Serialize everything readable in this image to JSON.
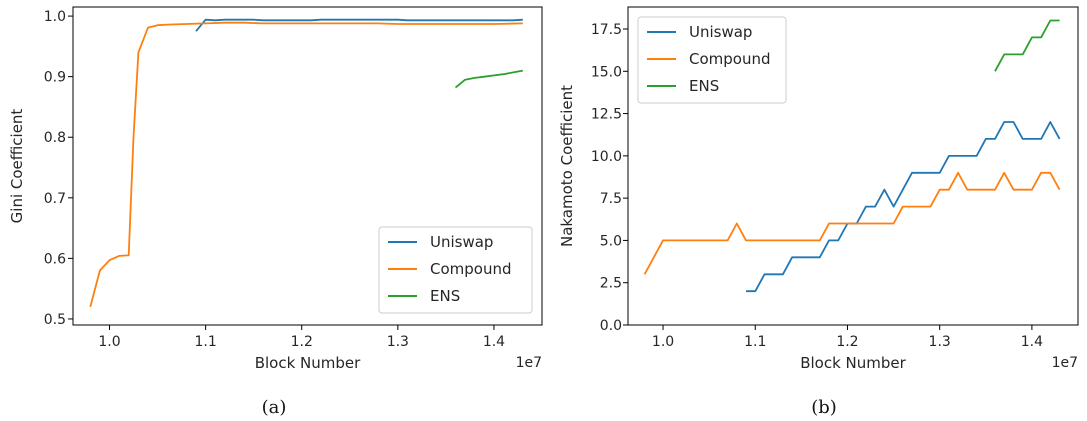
{
  "colors": {
    "Uniswap": "#1f77b4",
    "Compound": "#ff7f0e",
    "ENS": "#2ca02c"
  },
  "chart_data": [
    {
      "type": "line",
      "caption": "(a)",
      "xlabel": "Block Number",
      "ylabel": "Gini Coefficient",
      "x_offset_label": "1e7",
      "xlim": [
        0.962,
        1.45
      ],
      "ylim": [
        0.49,
        1.015
      ],
      "xticks": [
        1.0,
        1.1,
        1.2,
        1.3,
        1.4
      ],
      "xtick_labels": [
        "1.0",
        "1.1",
        "1.2",
        "1.3",
        "1.4"
      ],
      "yticks": [
        0.5,
        0.6,
        0.7,
        0.8,
        0.9,
        1.0
      ],
      "ytick_labels": [
        "0.5",
        "0.6",
        "0.7",
        "0.8",
        "0.9",
        "1.0"
      ],
      "legend": "lower-right",
      "series": [
        {
          "name": "Uniswap",
          "x": [
            1.09,
            1.1,
            1.11,
            1.12,
            1.13,
            1.14,
            1.15,
            1.16,
            1.17,
            1.18,
            1.19,
            1.2,
            1.21,
            1.22,
            1.23,
            1.24,
            1.25,
            1.26,
            1.27,
            1.28,
            1.29,
            1.3,
            1.31,
            1.32,
            1.33,
            1.34,
            1.35,
            1.36,
            1.37,
            1.38,
            1.39,
            1.4,
            1.41,
            1.42,
            1.43
          ],
          "y": [
            0.975,
            0.994,
            0.993,
            0.994,
            0.994,
            0.994,
            0.994,
            0.993,
            0.993,
            0.993,
            0.993,
            0.993,
            0.993,
            0.994,
            0.994,
            0.994,
            0.994,
            0.994,
            0.994,
            0.994,
            0.994,
            0.994,
            0.993,
            0.993,
            0.993,
            0.993,
            0.993,
            0.993,
            0.993,
            0.993,
            0.993,
            0.993,
            0.993,
            0.993,
            0.994
          ]
        },
        {
          "name": "Compound",
          "x": [
            0.98,
            0.99,
            1.0,
            1.01,
            1.02,
            1.025,
            1.03,
            1.04,
            1.05,
            1.06,
            1.08,
            1.1,
            1.12,
            1.14,
            1.16,
            1.18,
            1.2,
            1.22,
            1.24,
            1.26,
            1.28,
            1.3,
            1.32,
            1.34,
            1.36,
            1.38,
            1.4,
            1.43
          ],
          "y": [
            0.52,
            0.58,
            0.597,
            0.604,
            0.605,
            0.8,
            0.94,
            0.981,
            0.985,
            0.986,
            0.987,
            0.988,
            0.989,
            0.989,
            0.988,
            0.988,
            0.988,
            0.988,
            0.988,
            0.988,
            0.988,
            0.987,
            0.987,
            0.987,
            0.987,
            0.987,
            0.987,
            0.988
          ]
        },
        {
          "name": "ENS",
          "x": [
            1.36,
            1.37,
            1.38,
            1.39,
            1.4,
            1.41,
            1.42,
            1.43
          ],
          "y": [
            0.882,
            0.895,
            0.898,
            0.9,
            0.902,
            0.904,
            0.907,
            0.91
          ]
        }
      ]
    },
    {
      "type": "line",
      "caption": "(b)",
      "xlabel": "Block Number",
      "ylabel": "Nakamoto Coefficient",
      "x_offset_label": "1e7",
      "xlim": [
        0.962,
        1.45
      ],
      "ylim": [
        0,
        18.8
      ],
      "xticks": [
        1.0,
        1.1,
        1.2,
        1.3,
        1.4
      ],
      "xtick_labels": [
        "1.0",
        "1.1",
        "1.2",
        "1.3",
        "1.4"
      ],
      "yticks": [
        0,
        2.5,
        5,
        7.5,
        10,
        12.5,
        15,
        17.5
      ],
      "ytick_labels": [
        "0.0",
        "2.5",
        "5.0",
        "7.5",
        "10.0",
        "12.5",
        "15.0",
        "17.5"
      ],
      "legend": "upper-left",
      "series": [
        {
          "name": "Uniswap",
          "x": [
            1.09,
            1.1,
            1.11,
            1.12,
            1.13,
            1.14,
            1.15,
            1.16,
            1.17,
            1.18,
            1.19,
            1.2,
            1.21,
            1.22,
            1.23,
            1.24,
            1.25,
            1.26,
            1.27,
            1.28,
            1.29,
            1.3,
            1.31,
            1.32,
            1.33,
            1.34,
            1.35,
            1.36,
            1.37,
            1.38,
            1.39,
            1.4,
            1.41,
            1.42,
            1.43
          ],
          "y": [
            2,
            2,
            3,
            3,
            3,
            4,
            4,
            4,
            4,
            5,
            5,
            6,
            6,
            7,
            7,
            8,
            7,
            8,
            9,
            9,
            9,
            9,
            10,
            10,
            10,
            10,
            11,
            11,
            12,
            12,
            11,
            11,
            11,
            12,
            11
          ]
        },
        {
          "name": "Compound",
          "x": [
            0.98,
            0.99,
            1.0,
            1.01,
            1.02,
            1.03,
            1.04,
            1.05,
            1.06,
            1.07,
            1.08,
            1.09,
            1.1,
            1.11,
            1.12,
            1.13,
            1.14,
            1.15,
            1.16,
            1.17,
            1.18,
            1.19,
            1.2,
            1.21,
            1.22,
            1.23,
            1.24,
            1.25,
            1.26,
            1.27,
            1.28,
            1.29,
            1.3,
            1.31,
            1.32,
            1.33,
            1.34,
            1.35,
            1.36,
            1.37,
            1.38,
            1.39,
            1.4,
            1.41,
            1.42,
            1.43
          ],
          "y": [
            3,
            4,
            5,
            5,
            5,
            5,
            5,
            5,
            5,
            5,
            6,
            5,
            5,
            5,
            5,
            5,
            5,
            5,
            5,
            5,
            6,
            6,
            6,
            6,
            6,
            6,
            6,
            6,
            7,
            7,
            7,
            7,
            8,
            8,
            9,
            8,
            8,
            8,
            8,
            9,
            8,
            8,
            8,
            9,
            9,
            8
          ]
        },
        {
          "name": "ENS",
          "x": [
            1.36,
            1.37,
            1.38,
            1.39,
            1.4,
            1.41,
            1.42,
            1.43
          ],
          "y": [
            15,
            16,
            16,
            16,
            17,
            17,
            18,
            18
          ]
        }
      ]
    }
  ]
}
